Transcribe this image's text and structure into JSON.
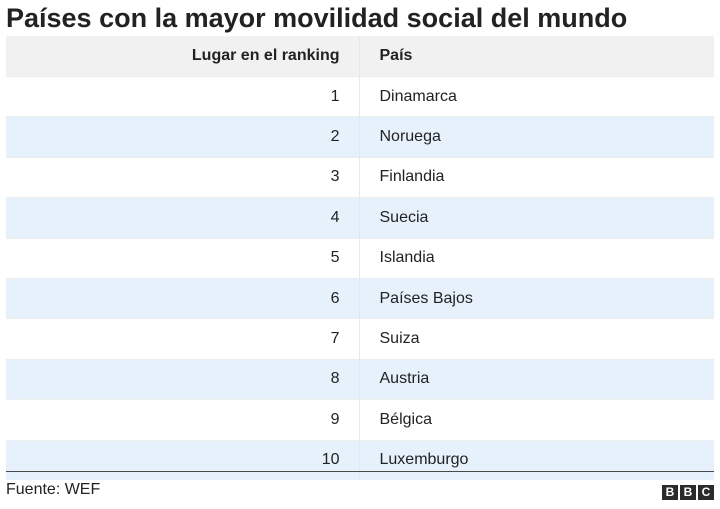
{
  "title": "Países con la mayor movilidad social del mundo",
  "table": {
    "headers": {
      "rank": "Lugar en el ranking",
      "country": "País"
    }
  },
  "chart_data": {
    "type": "table",
    "title": "Países con la mayor movilidad social del mundo",
    "columns": [
      "Lugar en el ranking",
      "País"
    ],
    "rows": [
      {
        "rank": 1,
        "country": "Dinamarca"
      },
      {
        "rank": 2,
        "country": "Noruega"
      },
      {
        "rank": 3,
        "country": "Finlandia"
      },
      {
        "rank": 4,
        "country": "Suecia"
      },
      {
        "rank": 5,
        "country": "Islandia"
      },
      {
        "rank": 6,
        "country": "Países Bajos"
      },
      {
        "rank": 7,
        "country": "Suiza"
      },
      {
        "rank": 8,
        "country": "Austria"
      },
      {
        "rank": 9,
        "country": "Bélgica"
      },
      {
        "rank": 10,
        "country": "Luxemburgo"
      }
    ],
    "row_colors": [
      "#ffffff",
      "#e6f1fb"
    ],
    "header_color": "#f1f1f1"
  },
  "footer": {
    "source": "Fuente: WEF",
    "logo_letters": [
      "B",
      "B",
      "C"
    ]
  }
}
